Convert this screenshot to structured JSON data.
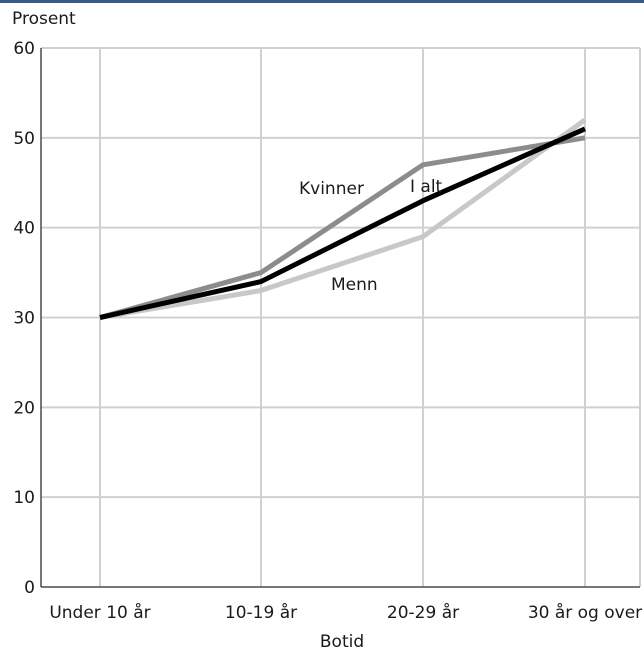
{
  "chart_data": {
    "type": "line",
    "ylabel": "Prosent",
    "xlabel": "Botid",
    "categories": [
      "Under 10 år",
      "10-19 år",
      "20-29 år",
      "30 år og over"
    ],
    "ylim": [
      0,
      60
    ],
    "yticks": [
      0,
      10,
      20,
      30,
      40,
      50,
      60
    ],
    "grid": true,
    "legend": "inline labels",
    "series": [
      {
        "name": "Kvinner",
        "values": [
          30,
          35,
          47,
          50
        ],
        "color": "#8c8c8c"
      },
      {
        "name": "Menn",
        "values": [
          30,
          33,
          39,
          52
        ],
        "color": "#c8c8c8"
      },
      {
        "name": "I alt",
        "values": [
          30,
          34,
          43,
          51
        ],
        "color": "#000000"
      }
    ],
    "top_rule_color": "#3a5a8a"
  }
}
